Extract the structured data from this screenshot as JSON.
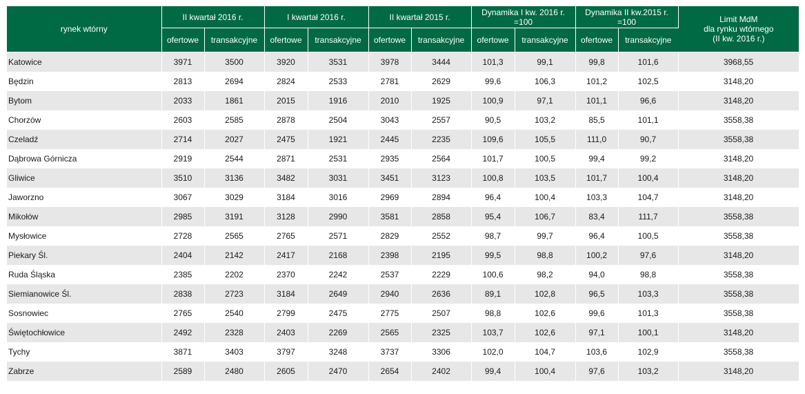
{
  "header": {
    "row_label": "rynek wtórny",
    "groups": [
      "II kwartał 2016 r.",
      "I kwartał 2016 r.",
      "II kwartał 2015 r.",
      "Dynamika I kw. 2016 r. =100",
      "Dynamika II kw.2015 r. =100"
    ],
    "limit": [
      "Limit MdM",
      "dla rynku wtórnego",
      "(II kw. 2016 r.)"
    ],
    "sub_ofertowe": "ofertowe",
    "sub_transakcyjne": "transakcyjne"
  },
  "rows": [
    [
      "Katowice",
      "3971",
      "3500",
      "3920",
      "3531",
      "3978",
      "3444",
      "101,3",
      "99,1",
      "99,8",
      "101,6",
      "3968,55"
    ],
    [
      "Będzin",
      "2813",
      "2694",
      "2824",
      "2533",
      "2781",
      "2629",
      "99,6",
      "106,3",
      "101,2",
      "102,5",
      "3148,20"
    ],
    [
      "Bytom",
      "2033",
      "1861",
      "2015",
      "1916",
      "2010",
      "1925",
      "100,9",
      "97,1",
      "101,1",
      "96,6",
      "3148,20"
    ],
    [
      "Chorzów",
      "2603",
      "2585",
      "2878",
      "2504",
      "3043",
      "2557",
      "90,5",
      "103,2",
      "85,5",
      "101,1",
      "3558,38"
    ],
    [
      "Czeladź",
      "2714",
      "2027",
      "2475",
      "1921",
      "2445",
      "2235",
      "109,6",
      "105,5",
      "111,0",
      "90,7",
      "3558,38"
    ],
    [
      "Dąbrowa Górnicza",
      "2919",
      "2544",
      "2871",
      "2531",
      "2935",
      "2564",
      "101,7",
      "100,5",
      "99,4",
      "99,2",
      "3148,20"
    ],
    [
      "Gliwice",
      "3510",
      "3136",
      "3482",
      "3031",
      "3451",
      "3123",
      "100,8",
      "103,5",
      "101,7",
      "100,4",
      "3148,20"
    ],
    [
      "Jaworzno",
      "3067",
      "3029",
      "3184",
      "3016",
      "2969",
      "2894",
      "96,4",
      "100,4",
      "103,3",
      "104,7",
      "3148,20"
    ],
    [
      "Mikołów",
      "2985",
      "3191",
      "3128",
      "2990",
      "3581",
      "2858",
      "95,4",
      "106,7",
      "83,4",
      "111,7",
      "3558,38"
    ],
    [
      "Mysłowice",
      "2728",
      "2565",
      "2765",
      "2571",
      "2829",
      "2552",
      "98,7",
      "99,7",
      "96,4",
      "100,5",
      "3558,38"
    ],
    [
      "Piekary Śl.",
      "2404",
      "2142",
      "2417",
      "2168",
      "2398",
      "2195",
      "99,5",
      "98,8",
      "100,2",
      "97,6",
      "3148,20"
    ],
    [
      "Ruda Śląska",
      "2385",
      "2202",
      "2370",
      "2242",
      "2537",
      "2229",
      "100,6",
      "98,2",
      "94,0",
      "98,8",
      "3558,38"
    ],
    [
      "Siemianowice Śl.",
      "2838",
      "2723",
      "3184",
      "2649",
      "2940",
      "2636",
      "89,1",
      "102,8",
      "96,5",
      "103,3",
      "3558,38"
    ],
    [
      "Sosnowiec",
      "2765",
      "2540",
      "2799",
      "2475",
      "2775",
      "2507",
      "98,8",
      "102,6",
      "99,6",
      "101,3",
      "3558,38"
    ],
    [
      "Świętochłowice",
      "2492",
      "2328",
      "2403",
      "2269",
      "2565",
      "2325",
      "103,7",
      "102,6",
      "97,1",
      "100,1",
      "3148,20"
    ],
    [
      "Tychy",
      "3871",
      "3403",
      "3797",
      "3248",
      "3737",
      "3306",
      "102,0",
      "104,7",
      "103,6",
      "102,9",
      "3558,38"
    ],
    [
      "Zabrze",
      "2589",
      "2480",
      "2605",
      "2470",
      "2654",
      "2402",
      "99,4",
      "100,4",
      "97,6",
      "103,2",
      "3148,20"
    ]
  ],
  "colors": {
    "header_bg": "#006a44",
    "stripe": "#e7e7e7"
  }
}
